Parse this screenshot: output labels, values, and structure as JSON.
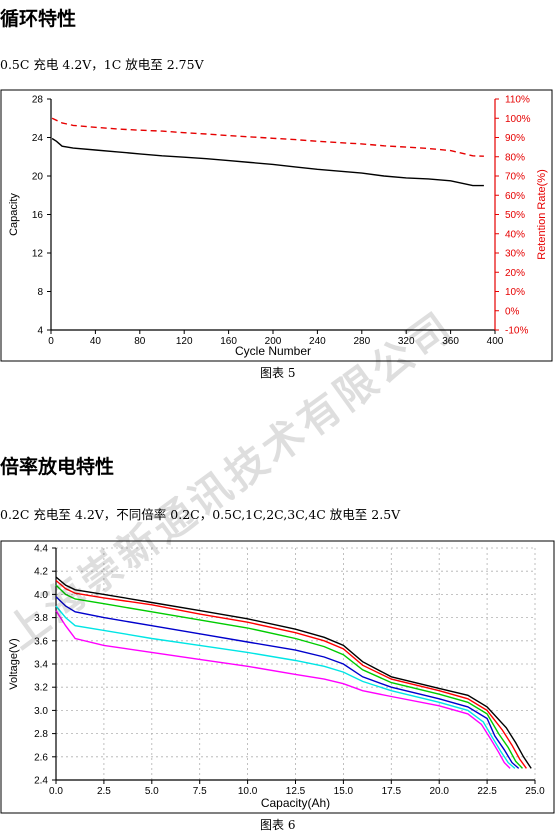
{
  "section1": {
    "heading": "循环特性",
    "condition": "0.5C 充电 4.2V，1C 放电至 2.75V",
    "caption": "图表 5"
  },
  "section2": {
    "heading": "倍率放电特性",
    "condition": "0.2C 充电至 4.2V，不同倍率 0.2C，0.5C,1C,2C,3C,4C 放电至 2.5V",
    "caption": "图表 6"
  },
  "watermark": "上海崇新通讯技术有限公司",
  "chart_data": [
    {
      "type": "line",
      "xlabel": "Cycle Number",
      "ylabel": "Capacity",
      "y2label": "Retention Rate(%)",
      "xlim": [
        0,
        400
      ],
      "ylim": [
        4,
        28
      ],
      "y2lim": [
        -10,
        110
      ],
      "xticks": [
        0,
        40,
        80,
        120,
        160,
        200,
        240,
        280,
        320,
        360,
        400
      ],
      "yticks": [
        4,
        8,
        12,
        16,
        20,
        24,
        28
      ],
      "y2ticks": [
        "-10%",
        "0%",
        "10%",
        "20%",
        "30%",
        "40%",
        "50%",
        "60%",
        "70%",
        "80%",
        "90%",
        "100%",
        "110%"
      ],
      "grid": false,
      "series": [
        {
          "axis": "left",
          "color": "#000000",
          "dash": "solid",
          "x": [
            1,
            5,
            10,
            20,
            40,
            60,
            80,
            100,
            120,
            140,
            160,
            180,
            200,
            220,
            240,
            260,
            280,
            300,
            320,
            340,
            360,
            380,
            390
          ],
          "y": [
            23.9,
            23.6,
            23.1,
            22.9,
            22.7,
            22.5,
            22.3,
            22.1,
            21.95,
            21.8,
            21.6,
            21.4,
            21.2,
            20.95,
            20.7,
            20.5,
            20.3,
            20.0,
            19.8,
            19.7,
            19.5,
            19.0,
            19.0
          ]
        },
        {
          "axis": "right",
          "color": "#e60000",
          "dash": "dashed",
          "x": [
            1,
            10,
            20,
            40,
            60,
            80,
            100,
            120,
            140,
            160,
            180,
            200,
            220,
            240,
            260,
            280,
            300,
            320,
            340,
            360,
            380,
            390
          ],
          "y": [
            100,
            97.6,
            96.3,
            95.3,
            94.4,
            93.8,
            93.3,
            92.5,
            91.8,
            91.0,
            90.3,
            89.6,
            88.9,
            88.0,
            87.3,
            86.7,
            85.7,
            85.0,
            84.3,
            83.2,
            80.5,
            80.3
          ]
        }
      ]
    },
    {
      "type": "line",
      "xlabel": "Capacity(Ah)",
      "ylabel": "Voltage(V)",
      "xlim": [
        0,
        25
      ],
      "ylim": [
        2.4,
        4.4
      ],
      "xticks": [
        "0.0",
        "2.5",
        "5.0",
        "7.5",
        "10.0",
        "12.5",
        "15.0",
        "17.5",
        "20.0",
        "22.5",
        "25.0"
      ],
      "yticks": [
        "2.4",
        "2.6",
        "2.8",
        "3.0",
        "3.2",
        "3.4",
        "3.6",
        "3.8",
        "4.0",
        "4.2",
        "4.4"
      ],
      "grid": true,
      "series": [
        {
          "color": "#000000",
          "x": [
            0,
            0.5,
            1,
            2.5,
            5,
            7.5,
            10,
            12.5,
            14,
            15,
            16,
            17.5,
            20,
            21.5,
            22.5,
            23.5,
            24,
            24.4,
            24.8
          ],
          "y": [
            4.15,
            4.08,
            4.04,
            4.0,
            3.93,
            3.86,
            3.79,
            3.7,
            3.63,
            3.56,
            3.42,
            3.29,
            3.19,
            3.13,
            3.03,
            2.85,
            2.72,
            2.6,
            2.5
          ]
        },
        {
          "color": "#ff0000",
          "x": [
            0,
            0.5,
            1,
            2.5,
            5,
            7.5,
            10,
            12.5,
            14,
            15,
            16,
            17.5,
            20,
            21.5,
            22.5,
            23.3,
            23.8,
            24.2,
            24.55
          ],
          "y": [
            4.12,
            4.05,
            4.01,
            3.97,
            3.91,
            3.83,
            3.76,
            3.67,
            3.6,
            3.53,
            3.39,
            3.27,
            3.17,
            3.1,
            3.0,
            2.83,
            2.7,
            2.58,
            2.5
          ]
        },
        {
          "color": "#00cc00",
          "x": [
            0,
            0.5,
            1,
            2.5,
            5,
            7.5,
            10,
            12.5,
            14,
            15,
            16,
            17.5,
            20,
            21.5,
            22.5,
            23.1,
            23.6,
            24.0,
            24.35
          ],
          "y": [
            4.08,
            4.0,
            3.96,
            3.92,
            3.85,
            3.78,
            3.71,
            3.62,
            3.55,
            3.48,
            3.35,
            3.24,
            3.14,
            3.07,
            2.97,
            2.8,
            2.68,
            2.56,
            2.5
          ]
        },
        {
          "color": "#0000cc",
          "x": [
            0,
            0.5,
            1,
            2.5,
            5,
            7.5,
            10,
            12.5,
            14,
            15,
            16,
            17.5,
            20,
            21.5,
            22.5,
            22.9,
            23.4,
            23.8,
            24.15
          ],
          "y": [
            3.98,
            3.9,
            3.85,
            3.8,
            3.73,
            3.66,
            3.59,
            3.52,
            3.46,
            3.4,
            3.29,
            3.2,
            3.1,
            3.03,
            2.93,
            2.78,
            2.66,
            2.55,
            2.5
          ]
        },
        {
          "color": "#00e5e5",
          "x": [
            0,
            0.5,
            1,
            2.5,
            5,
            7.5,
            10,
            12.5,
            14,
            15,
            16,
            17.5,
            20,
            21.5,
            22.3,
            22.8,
            23.2,
            23.6,
            23.95
          ],
          "y": [
            3.9,
            3.8,
            3.73,
            3.69,
            3.62,
            3.56,
            3.5,
            3.43,
            3.38,
            3.33,
            3.25,
            3.17,
            3.07,
            3.0,
            2.9,
            2.76,
            2.65,
            2.55,
            2.5
          ]
        },
        {
          "color": "#ff00ff",
          "x": [
            0,
            0.5,
            1,
            2.5,
            5,
            7.5,
            10,
            12.5,
            14,
            15,
            16,
            17.5,
            20,
            21.5,
            22.2,
            22.7,
            23.1,
            23.4,
            23.7
          ],
          "y": [
            3.86,
            3.73,
            3.62,
            3.56,
            3.5,
            3.44,
            3.38,
            3.31,
            3.27,
            3.23,
            3.17,
            3.12,
            3.04,
            2.97,
            2.88,
            2.75,
            2.64,
            2.55,
            2.5
          ]
        }
      ]
    }
  ]
}
